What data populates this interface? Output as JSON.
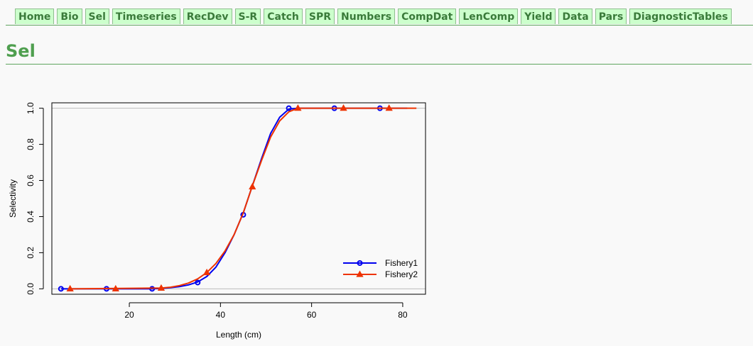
{
  "nav": {
    "tabs": [
      {
        "label": "Home"
      },
      {
        "label": "Bio"
      },
      {
        "label": "Sel"
      },
      {
        "label": "Timeseries"
      },
      {
        "label": "RecDev"
      },
      {
        "label": "S-R"
      },
      {
        "label": "Catch"
      },
      {
        "label": "SPR"
      },
      {
        "label": "Numbers"
      },
      {
        "label": "CompDat"
      },
      {
        "label": "LenComp"
      },
      {
        "label": "Yield"
      },
      {
        "label": "Data"
      },
      {
        "label": "Pars"
      },
      {
        "label": "DiagnosticTables"
      }
    ]
  },
  "page": {
    "title": "Sel"
  },
  "colors": {
    "nav_bg": "#ccffcc",
    "nav_text": "#3a7a3a",
    "title": "#4f9f4f",
    "fishery1": "#0000ee",
    "fishery2": "#ee3300",
    "refline": "#bdbdbd"
  },
  "chart_data": {
    "type": "line",
    "title": "",
    "xlabel": "Length (cm)",
    "ylabel": "Selectivity",
    "xlim": [
      3,
      85
    ],
    "ylim": [
      -0.03,
      1.03
    ],
    "xticks": [
      20,
      40,
      60,
      80
    ],
    "yticks": [
      0.0,
      0.2,
      0.4,
      0.6,
      0.8,
      1.0
    ],
    "ytick_labels": [
      "0.0",
      "0.2",
      "0.4",
      "0.6",
      "0.8",
      "1.0"
    ],
    "reference_lines": [
      0,
      1
    ],
    "legend_position": "bottom-right",
    "grid": false,
    "series": [
      {
        "name": "Fishery1",
        "color": "#0000ee",
        "marker": "circle",
        "x": [
          5,
          25,
          27,
          29,
          31,
          33,
          35,
          37,
          39,
          41,
          43,
          45,
          47,
          49,
          51,
          53,
          55,
          57,
          65,
          75,
          81
        ],
        "y": [
          0,
          0,
          0.002,
          0.006,
          0.012,
          0.022,
          0.038,
          0.068,
          0.12,
          0.2,
          0.3,
          0.42,
          0.57,
          0.72,
          0.86,
          0.95,
          0.995,
          1,
          1,
          1,
          1
        ],
        "markers_x": [
          5,
          15,
          25,
          35,
          45,
          55,
          65,
          75
        ],
        "markers_y": [
          0,
          0,
          0,
          0.035,
          0.41,
          1,
          1,
          1
        ]
      },
      {
        "name": "Fishery2",
        "color": "#ee3300",
        "marker": "triangle",
        "x": [
          7,
          27,
          29,
          31,
          33,
          35,
          37,
          39,
          41,
          43,
          45,
          47,
          49,
          51,
          53,
          55,
          57,
          67,
          77,
          83
        ],
        "y": [
          0,
          0.004,
          0.009,
          0.018,
          0.032,
          0.055,
          0.09,
          0.14,
          0.21,
          0.3,
          0.42,
          0.57,
          0.71,
          0.84,
          0.93,
          0.98,
          1,
          1,
          1,
          1
        ],
        "markers_x": [
          7,
          17,
          27,
          37,
          47,
          57,
          67,
          77
        ],
        "markers_y": [
          0,
          0,
          0.004,
          0.09,
          0.565,
          1,
          1,
          1
        ]
      }
    ]
  }
}
